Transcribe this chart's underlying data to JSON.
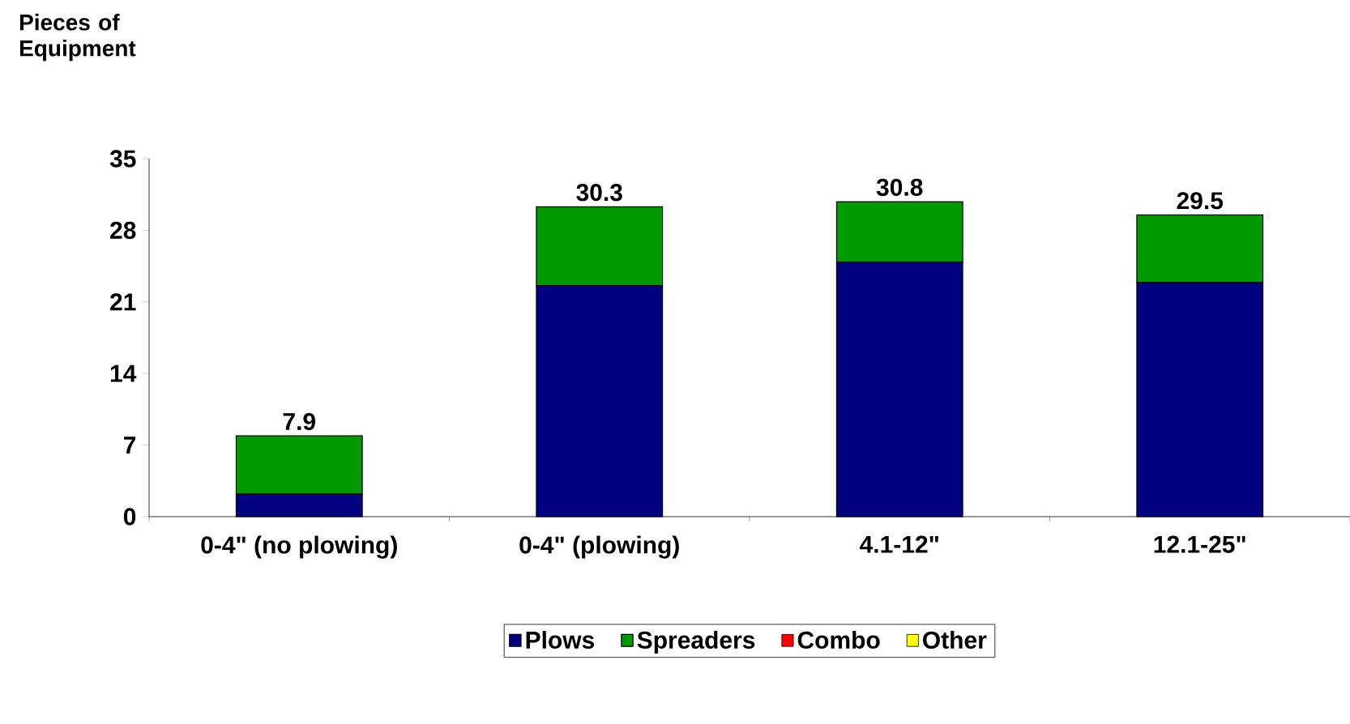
{
  "chart_data": {
    "type": "bar",
    "stacked": true,
    "ylabel": "Pieces of Equipment",
    "categories": [
      "0-4\" (no plowing)",
      "0-4\" (plowing)",
      "4.1-12\"",
      "12.1-25\""
    ],
    "series": [
      {
        "name": "Plows",
        "color": "#000080",
        "values": [
          2.2,
          22.6,
          24.9,
          22.9
        ]
      },
      {
        "name": "Spreaders",
        "color": "#009900",
        "values": [
          5.7,
          7.7,
          5.9,
          6.6
        ]
      },
      {
        "name": "Combo",
        "color": "#ff0000",
        "values": [
          null,
          null,
          null,
          null
        ]
      },
      {
        "name": "Other",
        "color": "#ffff00",
        "values": [
          null,
          null,
          null,
          null
        ]
      }
    ],
    "totals": [
      "7.9",
      "30.3",
      "30.8",
      "29.5"
    ],
    "ylim": [
      0,
      35
    ],
    "yticks": [
      0,
      7,
      14,
      21,
      28,
      35
    ],
    "grid": false,
    "legend": "bottom"
  }
}
